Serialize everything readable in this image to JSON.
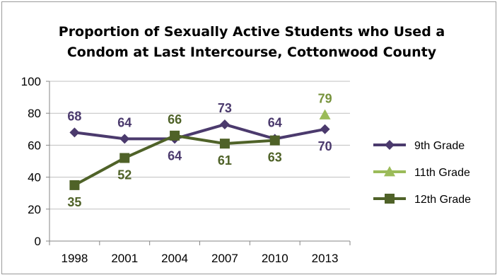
{
  "colors": {
    "series_9th": "#4b3a6d",
    "series_11th": "#9bbb59",
    "series_12th": "#4f6228",
    "label_11th": "#77933c",
    "grid": "#bfbfbf",
    "axis": "#868686"
  },
  "chart_data": {
    "type": "line",
    "title": "Proportion of Sexually Active Students who Used a Condom at Last Intercourse, Cottonwood County",
    "title_lines": [
      "Proportion of Sexually Active Students who Used a",
      "Condom at Last Intercourse, Cottonwood County"
    ],
    "xlabel": "",
    "ylabel": "",
    "categories": [
      "1998",
      "2001",
      "2004",
      "2007",
      "2010",
      "2013"
    ],
    "ylim": [
      0,
      100
    ],
    "yticks": [
      0,
      20,
      40,
      60,
      80,
      100
    ],
    "grid": true,
    "legend_position": "right",
    "series": [
      {
        "name": "9th Grade",
        "marker": "diamond",
        "values": [
          68,
          64,
          64,
          73,
          64,
          70
        ]
      },
      {
        "name": "11th Grade",
        "marker": "triangle",
        "values": [
          null,
          null,
          null,
          null,
          null,
          79
        ]
      },
      {
        "name": "12th Grade",
        "marker": "square",
        "values": [
          35,
          52,
          66,
          61,
          63,
          null
        ]
      }
    ]
  }
}
